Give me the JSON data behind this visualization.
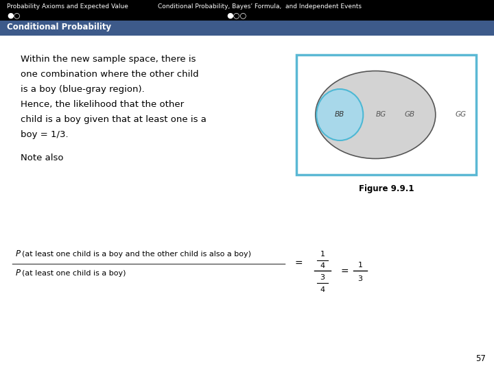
{
  "header_bg": "#000000",
  "header_text_color": "#ffffff",
  "subheader_bg": "#3d5a8a",
  "subheader_text_color": "#ffffff",
  "body_bg": "#ffffff",
  "body_text_color": "#000000",
  "title_left": "Probability Axioms and Expected Value",
  "title_right": "Conditional Probability, Bayes’ Formula,  and Independent Events",
  "dots_left": "●○",
  "dots_right": "●○○",
  "subheader_text": "Conditional Probability",
  "body_lines": [
    "Within the new sample space, there is",
    "one combination where the other child",
    "is a boy (blue-gray region).",
    "Hence, the likelihood that the other",
    "child is a boy given that at least one is a",
    "boy = 1/3."
  ],
  "note_also": "Note also",
  "figure_caption": "Figure 9.9.1",
  "page_number": "57",
  "outer_ellipse_color": "#d3d3d3",
  "outer_ellipse_edge": "#555555",
  "inner_circle_color": "#a8d8ea",
  "inner_circle_edge": "#4db8d4",
  "figure_border_color": "#5bb8d4",
  "label_bb": "BB",
  "label_bg": "BG",
  "label_gb": "GB",
  "label_gg": "GG"
}
